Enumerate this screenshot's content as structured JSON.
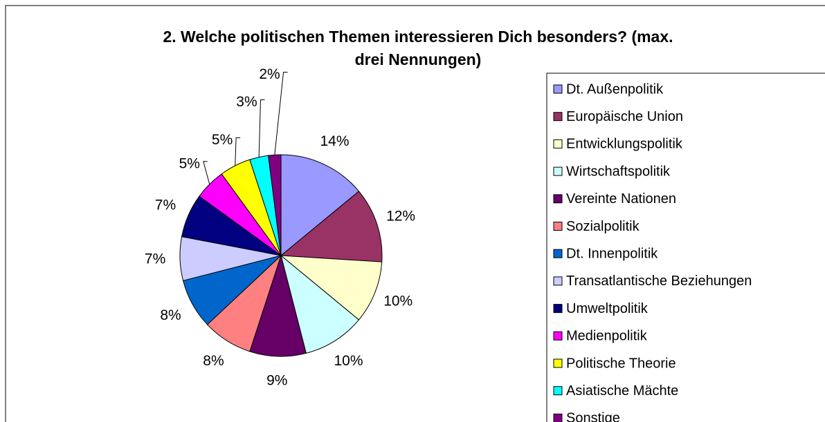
{
  "chart_data": {
    "type": "pie",
    "title": "2. Welche politischen Themen interessieren Dich besonders? (max. drei Nennungen)",
    "categories": [
      "Dt. Außenpolitik",
      "Europäische Union",
      "Entwicklungspolitik",
      "Wirtschaftspolitik",
      "Vereinte Nationen",
      "Sozialpolitik",
      "Dt. Innenpolitik",
      "Transatlantische Beziehungen",
      "Umweltpolitik",
      "Medienpolitik",
      "Politische Theorie",
      "Asiatische Mächte",
      "Sonstige"
    ],
    "values": [
      14,
      12,
      10,
      10,
      9,
      8,
      8,
      7,
      7,
      5,
      5,
      3,
      2
    ],
    "value_labels": [
      "14%",
      "12%",
      "10%",
      "10%",
      "9%",
      "8%",
      "8%",
      "7%",
      "7%",
      "5%",
      "5%",
      "3%",
      "2%"
    ],
    "colors": [
      "#9999FF",
      "#993366",
      "#FFFFCC",
      "#CCFFFF",
      "#660066",
      "#FF8080",
      "#0066CC",
      "#CCCCFF",
      "#000080",
      "#FF00FF",
      "#FFFF00",
      "#00FFFF",
      "#800080"
    ],
    "legend": "right"
  }
}
